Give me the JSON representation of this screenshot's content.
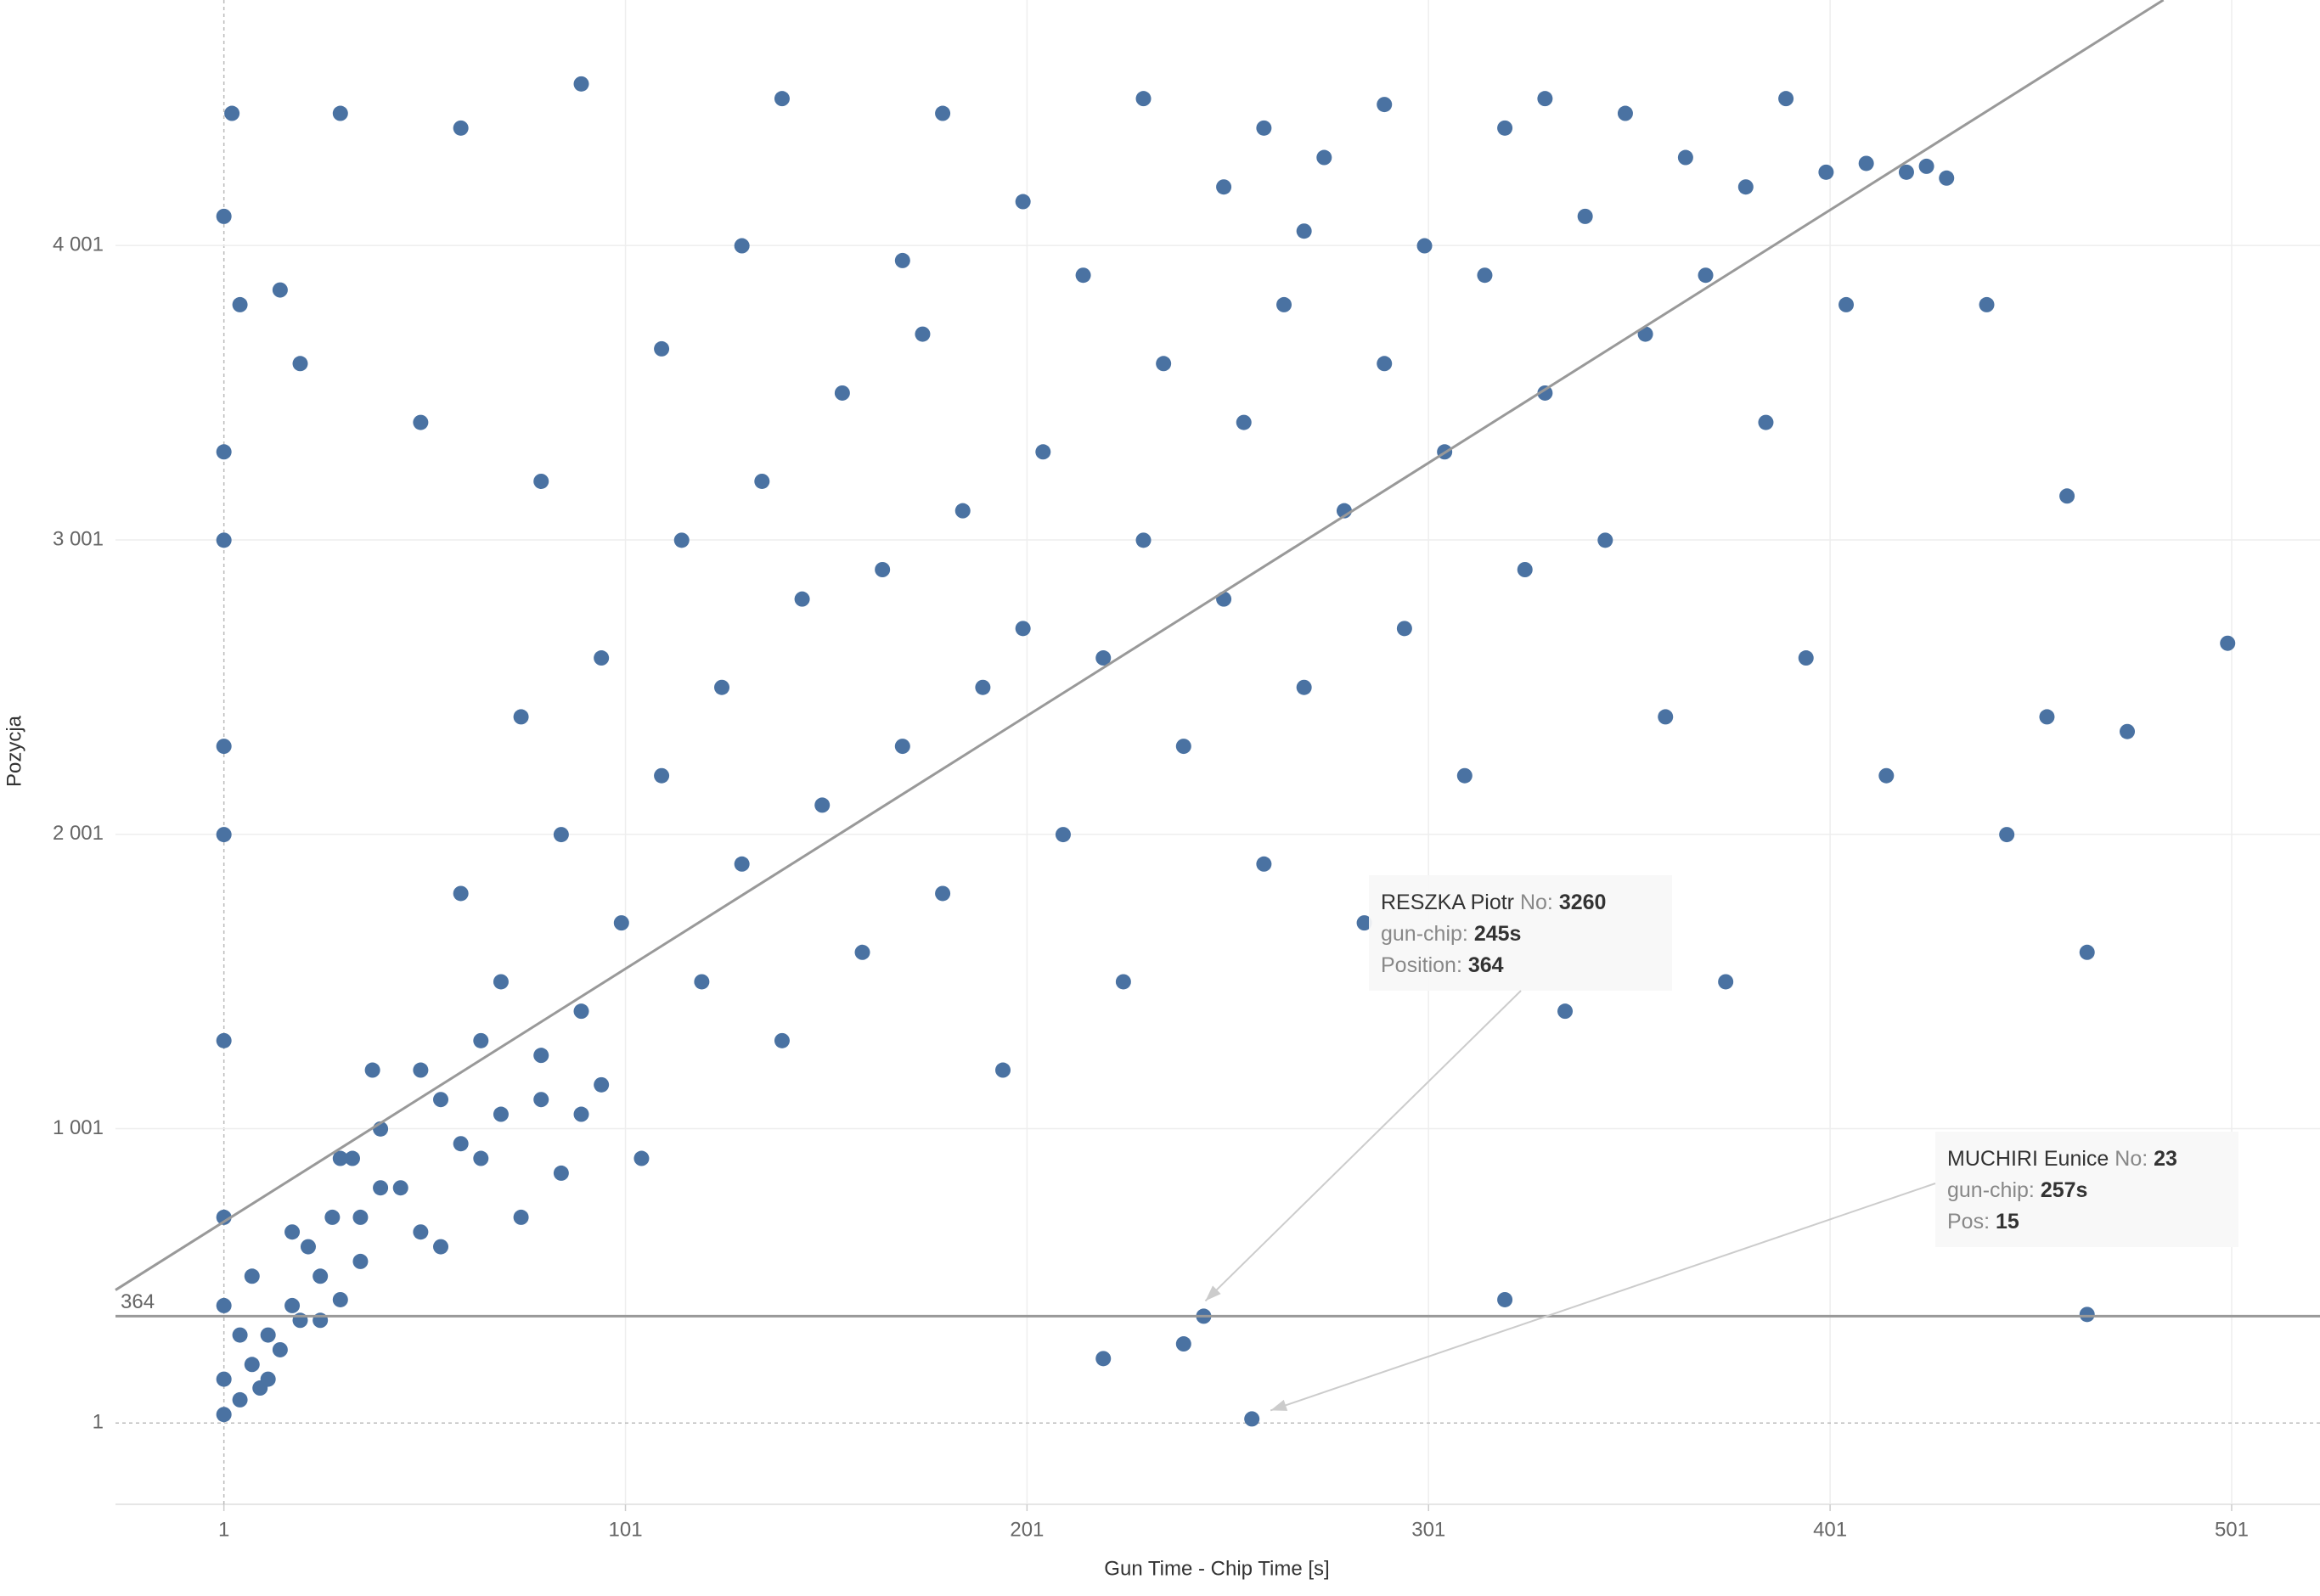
{
  "chart_data": {
    "type": "scatter",
    "x_label": "Gun Time - Chip Time [s]",
    "y_label": "Pozycja",
    "color": "#4a72a2",
    "xlim": [
      -26,
      523
    ],
    "ylim": [
      -275,
      4835
    ],
    "xticks": [
      1,
      101,
      201,
      301,
      401,
      501
    ],
    "yticks": [
      1,
      {
        "value": 1001,
        "label": "1 001"
      },
      {
        "value": 2001,
        "label": "2 001"
      },
      {
        "value": 3001,
        "label": "3 001"
      },
      {
        "value": 4001,
        "label": "4 001"
      }
    ],
    "grid": true,
    "reference_line": 364,
    "trend_line": {
      "x": [
        -26,
        484
      ],
      "y": [
        453,
        4835
      ]
    },
    "x": [
      1,
      1,
      1,
      1,
      1,
      1,
      1,
      1,
      1,
      1,
      3,
      5,
      8,
      10,
      12,
      15,
      18,
      20,
      22,
      25,
      28,
      30,
      33,
      35,
      38,
      40,
      50,
      55,
      60,
      65,
      70,
      75,
      80,
      85,
      90,
      95,
      100,
      105,
      110,
      115,
      120,
      125,
      130,
      135,
      140,
      145,
      150,
      155,
      160,
      165,
      170,
      175,
      180,
      185,
      190,
      195,
      200,
      205,
      210,
      215,
      220,
      225,
      230,
      235,
      240,
      245,
      250,
      255,
      257,
      260,
      265,
      270,
      275,
      280,
      285,
      290,
      295,
      300,
      305,
      310,
      315,
      320,
      325,
      330,
      335,
      340,
      345,
      350,
      355,
      360,
      365,
      370,
      375,
      380,
      385,
      390,
      395,
      400,
      405,
      410,
      415,
      420,
      425,
      430,
      440,
      445,
      455,
      460,
      465,
      475,
      500,
      465,
      320,
      220,
      240,
      15,
      5,
      30,
      60,
      90,
      140,
      180,
      230,
      260,
      290,
      330,
      20,
      50,
      80,
      110,
      130,
      170,
      200,
      250,
      270,
      5,
      8,
      12,
      18,
      25,
      30,
      35,
      40,
      45,
      50,
      55,
      60,
      65,
      70,
      75,
      80,
      85,
      90,
      95
    ],
    "values": [
      30,
      150,
      400,
      700,
      1300,
      2000,
      2300,
      3000,
      3300,
      4100,
      4450,
      80,
      200,
      120,
      300,
      250,
      400,
      350,
      600,
      500,
      700,
      420,
      900,
      550,
      1200,
      800,
      1200,
      600,
      1800,
      900,
      1500,
      2400,
      1100,
      2000,
      1400,
      2600,
      1700,
      900,
      2200,
      3000,
      1500,
      2500,
      1900,
      3200,
      1300,
      2800,
      2100,
      3500,
      1600,
      2900,
      2300,
      3700,
      1800,
      3100,
      2500,
      1200,
      2700,
      3300,
      2000,
      3900,
      2600,
      1500,
      3000,
      3600,
      2300,
      364,
      2800,
      3400,
      15,
      1900,
      3800,
      2500,
      4300,
      3100,
      1700,
      3600,
      2700,
      4000,
      3300,
      2200,
      3900,
      4400,
      2900,
      3500,
      1400,
      4100,
      3000,
      4450,
      3700,
      2400,
      4300,
      3900,
      1500,
      4200,
      3400,
      4500,
      2600,
      4250,
      3800,
      4280,
      2200,
      4250,
      4270,
      4230,
      3800,
      2000,
      2400,
      3150,
      1600,
      2350,
      2650,
      370,
      420,
      220,
      270,
      3850,
      3800,
      4450,
      4400,
      4550,
      4500,
      4450,
      4500,
      4400,
      4480,
      4500,
      3600,
      3400,
      3200,
      3650,
      4000,
      3950,
      4150,
      4200,
      4050,
      300,
      500,
      150,
      650,
      350,
      900,
      700,
      1000,
      800,
      650,
      1100,
      950,
      1300,
      1050,
      700,
      1250,
      850,
      1050,
      1150
    ],
    "annotations": [
      {
        "name": "RESZKA Piotr",
        "no_label": "No:",
        "no": "3260",
        "gun_chip_label": "gun-chip:",
        "gun_chip": "245s",
        "pos_label": "Position:",
        "pos": "364",
        "x": 245,
        "y": 364
      },
      {
        "name": "MUCHIRI Eunice",
        "no_label": "No:",
        "no": "23",
        "gun_chip_label": "gun-chip:",
        "gun_chip": "257s",
        "pos_label": "Pos:",
        "pos": "15",
        "x": 257,
        "y": 15
      }
    ]
  }
}
